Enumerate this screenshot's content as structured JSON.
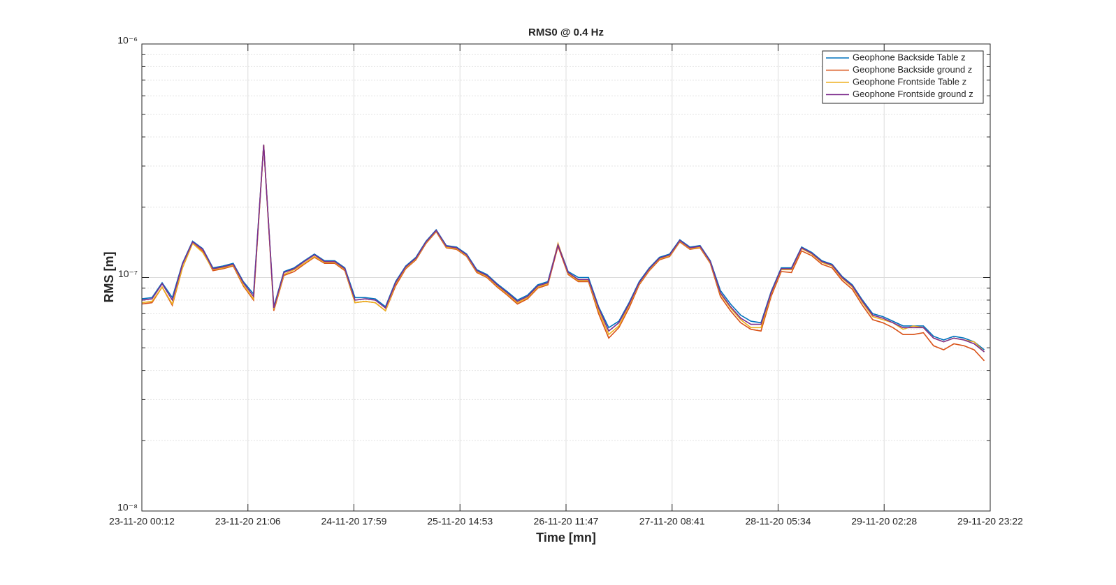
{
  "chart_data": {
    "type": "line",
    "title": "RMS0 @ 0.4 Hz",
    "xlabel": "Time [mn]",
    "ylabel": "RMS [m]",
    "x": [
      "23-11-20 00:12",
      "23-11-20 02:12",
      "23-11-20 04:12",
      "23-11-20 06:12",
      "23-11-20 08:12",
      "23-11-20 10:12",
      "23-11-20 12:12",
      "23-11-20 14:12",
      "23-11-20 16:12",
      "23-11-20 18:12",
      "23-11-20 20:12",
      "23-11-20 22:12",
      "24-11-20 00:12",
      "24-11-20 02:12",
      "24-11-20 04:12",
      "24-11-20 06:12",
      "24-11-20 08:12",
      "24-11-20 10:12",
      "24-11-20 12:12",
      "24-11-20 14:12",
      "24-11-20 16:12",
      "24-11-20 18:12",
      "24-11-20 20:12",
      "24-11-20 22:12",
      "25-11-20 00:12",
      "25-11-20 02:12",
      "25-11-20 04:12",
      "25-11-20 06:12",
      "25-11-20 08:12",
      "25-11-20 10:12",
      "25-11-20 12:12",
      "25-11-20 14:12",
      "25-11-20 16:12",
      "25-11-20 18:12",
      "25-11-20 20:12",
      "25-11-20 22:12",
      "26-11-20 00:12",
      "26-11-20 02:12",
      "26-11-20 04:12",
      "26-11-20 06:12",
      "26-11-20 08:12",
      "26-11-20 10:12",
      "26-11-20 12:12",
      "26-11-20 14:12",
      "26-11-20 16:12",
      "26-11-20 18:12",
      "26-11-20 20:12",
      "26-11-20 22:12",
      "27-11-20 00:12",
      "27-11-20 02:12",
      "27-11-20 04:12",
      "27-11-20 06:12",
      "27-11-20 08:12",
      "27-11-20 10:12",
      "27-11-20 12:12",
      "27-11-20 14:12",
      "27-11-20 16:12",
      "27-11-20 18:12",
      "27-11-20 20:12",
      "27-11-20 22:12",
      "28-11-20 00:12",
      "28-11-20 02:12",
      "28-11-20 04:12",
      "28-11-20 06:12",
      "28-11-20 08:12",
      "28-11-20 10:12",
      "28-11-20 12:12",
      "28-11-20 14:12",
      "28-11-20 16:12",
      "28-11-20 18:12",
      "28-11-20 20:12",
      "28-11-20 22:12",
      "29-11-20 00:12",
      "29-11-20 02:12",
      "29-11-20 04:12",
      "29-11-20 06:12",
      "29-11-20 08:12",
      "29-11-20 10:12",
      "29-11-20 12:12",
      "29-11-20 14:12",
      "29-11-20 16:12",
      "29-11-20 18:12",
      "29-11-20 20:12",
      "29-11-20 22:12"
    ],
    "series": [
      {
        "name": "Geophone Backside Table z",
        "color": "#0072bd",
        "values": [
          8.1e-08,
          8.2e-08,
          9.5e-08,
          8.2e-08,
          1.15e-07,
          1.43e-07,
          1.33e-07,
          1.1e-07,
          1.12e-07,
          1.15e-07,
          9.6e-08,
          8.5e-08,
          3.7e-07,
          7.5e-08,
          1.06e-07,
          1.1e-07,
          1.18e-07,
          1.26e-07,
          1.18e-07,
          1.18e-07,
          1.1e-07,
          8.2e-08,
          8.2e-08,
          8.1e-08,
          7.5e-08,
          9.6e-08,
          1.12e-07,
          1.22e-07,
          1.43e-07,
          1.6e-07,
          1.37e-07,
          1.35e-07,
          1.26e-07,
          1.08e-07,
          1.03e-07,
          9.4e-08,
          8.7e-08,
          8e-08,
          8.4e-08,
          9.3e-08,
          9.6e-08,
          1.39e-07,
          1.06e-07,
          1e-07,
          1e-07,
          7.5e-08,
          6.1e-08,
          6.5e-08,
          7.8e-08,
          9.6e-08,
          1.1e-07,
          1.22e-07,
          1.26e-07,
          1.45e-07,
          1.35e-07,
          1.37e-07,
          1.18e-07,
          8.8e-08,
          7.7e-08,
          6.9e-08,
          6.5e-08,
          6.4e-08,
          8.7e-08,
          1.1e-07,
          1.1e-07,
          1.35e-07,
          1.28e-07,
          1.18e-07,
          1.14e-07,
          1.01e-07,
          9.3e-08,
          8e-08,
          7e-08,
          6.8e-08,
          6.5e-08,
          6.2e-08,
          6.2e-08,
          6.2e-08,
          5.6e-08,
          5.4e-08,
          5.6e-08,
          5.5e-08,
          5.3e-08,
          4.9e-08
        ]
      },
      {
        "name": "Geophone Backside ground z",
        "color": "#d95319",
        "values": [
          7.7e-08,
          7.8e-08,
          9.1e-08,
          7.6e-08,
          1.1e-07,
          1.4e-07,
          1.3e-07,
          1.07e-07,
          1.09e-07,
          1.12e-07,
          9.2e-08,
          8e-08,
          3.7e-07,
          7.2e-08,
          1.02e-07,
          1.06e-07,
          1.14e-07,
          1.22e-07,
          1.15e-07,
          1.15e-07,
          1.07e-07,
          7.8e-08,
          7.9e-08,
          7.8e-08,
          7.2e-08,
          9.2e-08,
          1.09e-07,
          1.19e-07,
          1.4e-07,
          1.57e-07,
          1.34e-07,
          1.32e-07,
          1.23e-07,
          1.05e-07,
          1e-07,
          9.1e-08,
          8.4e-08,
          7.7e-08,
          8.1e-08,
          9e-08,
          9.3e-08,
          1.36e-07,
          1.03e-07,
          9.6e-08,
          9.6e-08,
          7e-08,
          5.5e-08,
          6.1e-08,
          7.4e-08,
          9.3e-08,
          1.07e-07,
          1.19e-07,
          1.23e-07,
          1.42e-07,
          1.32e-07,
          1.34e-07,
          1.15e-07,
          8.3e-08,
          7.2e-08,
          6.4e-08,
          6e-08,
          5.9e-08,
          8.3e-08,
          1.06e-07,
          1.05e-07,
          1.3e-07,
          1.24e-07,
          1.14e-07,
          1.1e-07,
          9.7e-08,
          8.9e-08,
          7.6e-08,
          6.6e-08,
          6.4e-08,
          6.1e-08,
          5.7e-08,
          5.7e-08,
          5.8e-08,
          5.1e-08,
          4.9e-08,
          5.2e-08,
          5.1e-08,
          4.9e-08,
          4.4e-08
        ]
      },
      {
        "name": "Geophone Frontside Table z",
        "color": "#edb120",
        "values": [
          7.8e-08,
          7.9e-08,
          9.1e-08,
          7.7e-08,
          1.1e-07,
          1.4e-07,
          1.28e-07,
          1.08e-07,
          1.1e-07,
          1.13e-07,
          9.3e-08,
          8.1e-08,
          3.7e-07,
          7.3e-08,
          1.03e-07,
          1.08e-07,
          1.15e-07,
          1.23e-07,
          1.16e-07,
          1.16e-07,
          1.08e-07,
          7.8e-08,
          7.9e-08,
          7.8e-08,
          7.2e-08,
          9.4e-08,
          1.1e-07,
          1.2e-07,
          1.41e-07,
          1.58e-07,
          1.35e-07,
          1.33e-07,
          1.24e-07,
          1.06e-07,
          1.01e-07,
          9.2e-08,
          8.5e-08,
          7.8e-08,
          8.2e-08,
          9.1e-08,
          9.4e-08,
          1.4e-07,
          1.04e-07,
          9.7e-08,
          9.7e-08,
          7.2e-08,
          5.7e-08,
          6.2e-08,
          7.6e-08,
          9.4e-08,
          1.08e-07,
          1.2e-07,
          1.24e-07,
          1.43e-07,
          1.33e-07,
          1.35e-07,
          1.16e-07,
          8.5e-08,
          7.4e-08,
          6.6e-08,
          6.1e-08,
          6.1e-08,
          8.5e-08,
          1.08e-07,
          1.08e-07,
          1.33e-07,
          1.26e-07,
          1.16e-07,
          1.12e-07,
          9.9e-08,
          9.1e-08,
          7.8e-08,
          6.8e-08,
          6.6e-08,
          6.4e-08,
          6e-08,
          6.2e-08,
          6.1e-08,
          5.5e-08,
          5.3e-08,
          5.5e-08,
          5.4e-08,
          5.3e-08,
          4.8e-08
        ]
      },
      {
        "name": "Geophone Frontside ground z",
        "color": "#7e2f8e",
        "values": [
          8e-08,
          8.1e-08,
          9.4e-08,
          8e-08,
          1.14e-07,
          1.42e-07,
          1.32e-07,
          1.09e-07,
          1.11e-07,
          1.14e-07,
          9.5e-08,
          8.3e-08,
          3.7e-07,
          7.4e-08,
          1.05e-07,
          1.09e-07,
          1.17e-07,
          1.25e-07,
          1.17e-07,
          1.17e-07,
          1.09e-07,
          8e-08,
          8.1e-08,
          8e-08,
          7.4e-08,
          9.5e-08,
          1.11e-07,
          1.21e-07,
          1.42e-07,
          1.59e-07,
          1.36e-07,
          1.34e-07,
          1.25e-07,
          1.07e-07,
          1.02e-07,
          9.3e-08,
          8.6e-08,
          7.9e-08,
          8.3e-08,
          9.2e-08,
          9.5e-08,
          1.38e-07,
          1.05e-07,
          9.8e-08,
          9.8e-08,
          7.4e-08,
          5.9e-08,
          6.4e-08,
          7.7e-08,
          9.5e-08,
          1.09e-07,
          1.21e-07,
          1.25e-07,
          1.44e-07,
          1.34e-07,
          1.36e-07,
          1.17e-07,
          8.6e-08,
          7.5e-08,
          6.7e-08,
          6.3e-08,
          6.3e-08,
          8.6e-08,
          1.09e-07,
          1.09e-07,
          1.34e-07,
          1.27e-07,
          1.17e-07,
          1.13e-07,
          1e-07,
          9.2e-08,
          7.9e-08,
          6.9e-08,
          6.7e-08,
          6.4e-08,
          6.1e-08,
          6.1e-08,
          6.1e-08,
          5.5e-08,
          5.3e-08,
          5.5e-08,
          5.4e-08,
          5.2e-08,
          4.8e-08
        ]
      }
    ],
    "xlim": [
      "23-11-20 00:12",
      "29-11-20 23:22"
    ],
    "xticks": [
      "23-11-20 00:12",
      "23-11-20 21:06",
      "24-11-20 17:59",
      "25-11-20 14:53",
      "26-11-20 11:47",
      "27-11-20 08:41",
      "28-11-20 05:34",
      "29-11-20 02:28",
      "29-11-20 23:22"
    ],
    "ylim": [
      1e-08,
      1e-06
    ],
    "yticks": [
      {
        "value": 1e-08,
        "label": "10⁻⁸"
      },
      {
        "value": 1e-07,
        "label": "10⁻⁷"
      },
      {
        "value": 1e-06,
        "label": "10⁻⁶"
      }
    ],
    "ylog": true,
    "grid": true,
    "minor_grid": true,
    "legend": "upper right"
  }
}
